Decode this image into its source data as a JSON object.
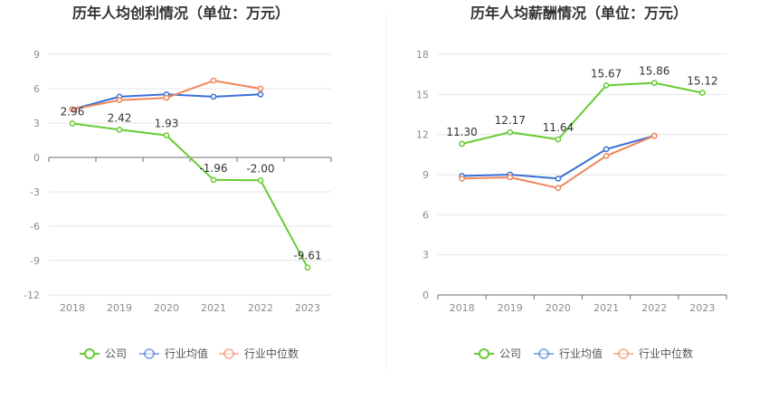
{
  "colors": {
    "company": "#66cc33",
    "industry_avg": "#3b6fd6",
    "industry_median": "#f0865a",
    "grid": "#e6e6e6",
    "axis": "#6e6e6e",
    "tick_text": "#8c8c8c",
    "label_text": "#333333",
    "divider": "#eeeeee"
  },
  "chart_data": [
    {
      "type": "line",
      "title": "历年人均创利情况（单位：万元）",
      "categories": [
        "2018",
        "2019",
        "2020",
        "2021",
        "2022",
        "2023"
      ],
      "ylim": [
        -12,
        9
      ],
      "yticks": [
        9,
        6,
        3,
        0,
        -3,
        -6,
        -9,
        -12
      ],
      "grid": true,
      "legend_position": "bottom",
      "series": [
        {
          "name": "公司",
          "key": "company",
          "values": [
            2.96,
            2.42,
            1.93,
            -1.96,
            -2.0,
            -9.61
          ],
          "labels": [
            "2.96",
            "2.42",
            "1.93",
            "-1.96",
            "-2.00",
            "-9.61"
          ]
        },
        {
          "name": "行业均值",
          "key": "industry_avg",
          "values": [
            4.2,
            5.3,
            5.5,
            5.3,
            5.5,
            null
          ]
        },
        {
          "name": "行业中位数",
          "key": "industry_median",
          "values": [
            4.2,
            5.0,
            5.2,
            6.7,
            6.0,
            null
          ]
        }
      ]
    },
    {
      "type": "line",
      "title": "历年人均薪酬情况（单位：万元）",
      "categories": [
        "2018",
        "2019",
        "2020",
        "2021",
        "2022",
        "2023"
      ],
      "ylim": [
        0,
        18
      ],
      "yticks": [
        18,
        15,
        12,
        9,
        6,
        3,
        0
      ],
      "grid": true,
      "legend_position": "bottom",
      "series": [
        {
          "name": "公司",
          "key": "company",
          "values": [
            11.3,
            12.17,
            11.64,
            15.67,
            15.86,
            15.12
          ],
          "labels": [
            "11.30",
            "12.17",
            "11.64",
            "15.67",
            "15.86",
            "15.12"
          ]
        },
        {
          "name": "行业均值",
          "key": "industry_avg",
          "values": [
            8.9,
            9.0,
            8.7,
            10.9,
            11.9,
            null
          ]
        },
        {
          "name": "行业中位数",
          "key": "industry_median",
          "values": [
            8.7,
            8.8,
            8.0,
            10.4,
            11.9,
            null
          ]
        }
      ]
    }
  ]
}
